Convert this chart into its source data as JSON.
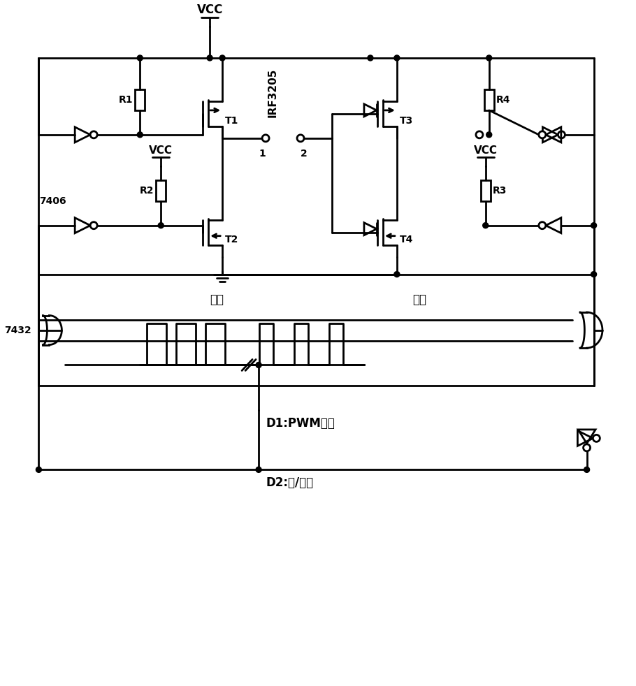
{
  "title": "",
  "background": "#ffffff",
  "line_color": "#000000",
  "line_width": 2.0,
  "labels": {
    "VCC_top": "VCC",
    "VCC_mid_left": "VCC",
    "VCC_mid_right": "VCC",
    "R1": "R1",
    "R2": "R2",
    "R3": "R3",
    "R4": "R4",
    "T1": "T1",
    "T2": "T2",
    "T3": "T3",
    "T4": "T4",
    "IRF3205": "IRF3205",
    "7406": "7406",
    "7432": "7432",
    "label1": "1",
    "label2": "2",
    "D1": "D1:PWM信号",
    "D2": "D2:正/反转",
    "gaoshu": "高速",
    "dishu": "低速"
  }
}
